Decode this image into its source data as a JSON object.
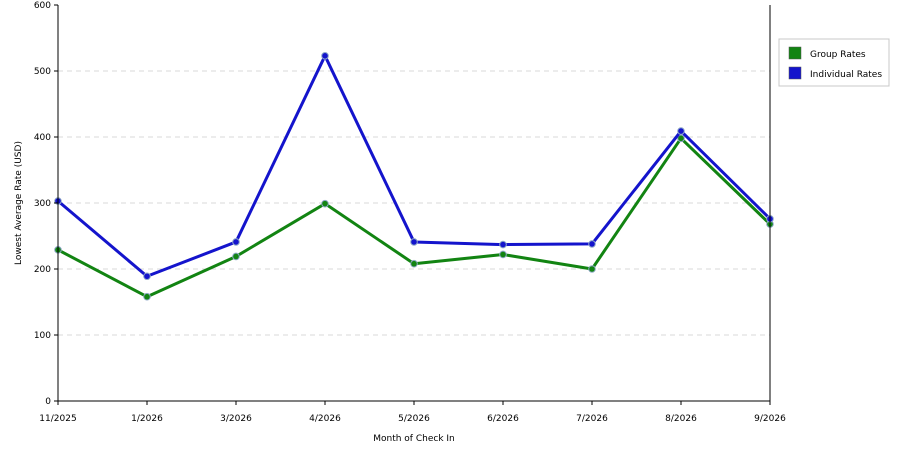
{
  "chart_data": {
    "type": "line",
    "xlabel": "Month of Check In",
    "ylabel": "Lowest Average Rate (USD)",
    "categories": [
      "11/2025",
      "1/2026",
      "3/2026",
      "4/2026",
      "5/2026",
      "6/2026",
      "7/2026",
      "8/2026",
      "9/2026"
    ],
    "ylim": [
      0,
      600
    ],
    "yticks": [
      0,
      100,
      200,
      300,
      400,
      500,
      600
    ],
    "grid": true,
    "legend_position": "top-right",
    "series": [
      {
        "name": "Group Rates",
        "color": "#128412",
        "values": [
          229,
          158,
          219,
          299,
          208,
          222,
          200,
          398,
          268
        ]
      },
      {
        "name": "Individual Rates",
        "color": "#1414cc",
        "values": [
          303,
          189,
          241,
          523,
          241,
          237,
          238,
          409,
          276
        ]
      }
    ]
  }
}
